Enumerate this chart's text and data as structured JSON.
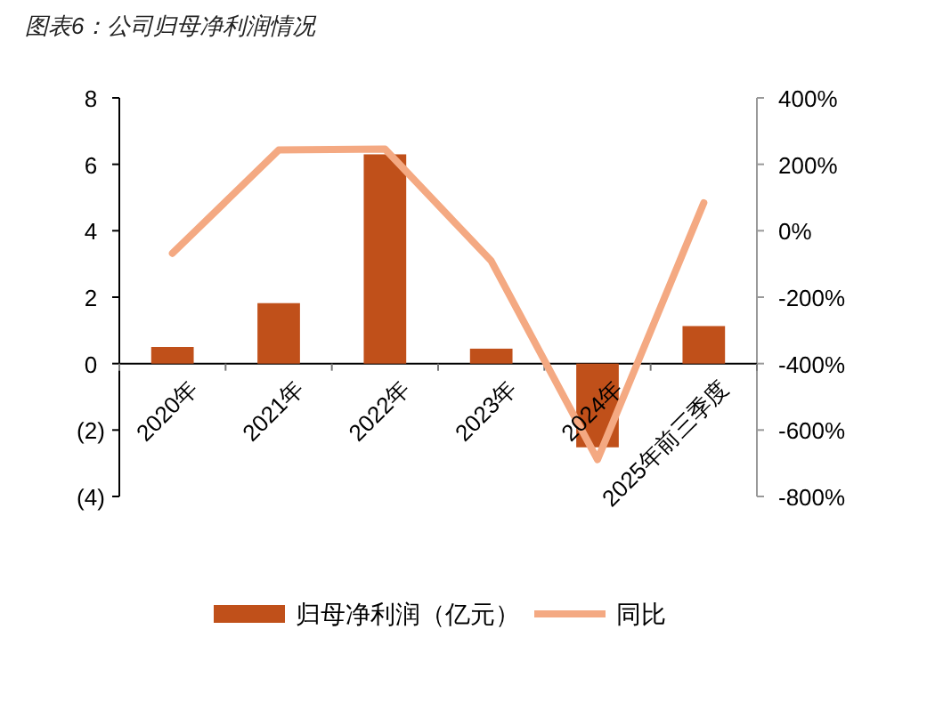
{
  "chart_data": {
    "type": "bar",
    "title": "图表6：公司归母净利润情况",
    "categories": [
      "2020年",
      "2021年",
      "2022年",
      "2023年",
      "2024年",
      "2025年前三季度"
    ],
    "series": [
      {
        "name": "归母净利润（亿元）",
        "color": "#c0501a",
        "values": [
          0.5,
          1.82,
          6.3,
          0.45,
          -2.52,
          1.13
        ]
      },
      {
        "name": "同比",
        "type": "line",
        "axis": "y2",
        "color": "#f4a982",
        "values": [
          -68,
          243,
          246,
          -91,
          -689,
          84
        ]
      }
    ],
    "ylim": [
      -4,
      8
    ],
    "yticks": [
      {
        "value": -4,
        "label": "(4)"
      },
      {
        "value": -2,
        "label": "(2)"
      },
      0,
      2,
      4,
      6,
      8
    ],
    "y2lim": [
      -800,
      400
    ],
    "y2ticks": [
      {
        "value": -800,
        "label": "-800%"
      },
      {
        "value": -600,
        "label": "-600%"
      },
      {
        "value": -400,
        "label": "-400%"
      },
      {
        "value": -200,
        "label": "-200%"
      },
      {
        "value": 0,
        "label": "0%"
      },
      {
        "value": 200,
        "label": "200%"
      },
      {
        "value": 400,
        "label": "400%"
      }
    ],
    "grid": false,
    "legend": "bottom"
  }
}
